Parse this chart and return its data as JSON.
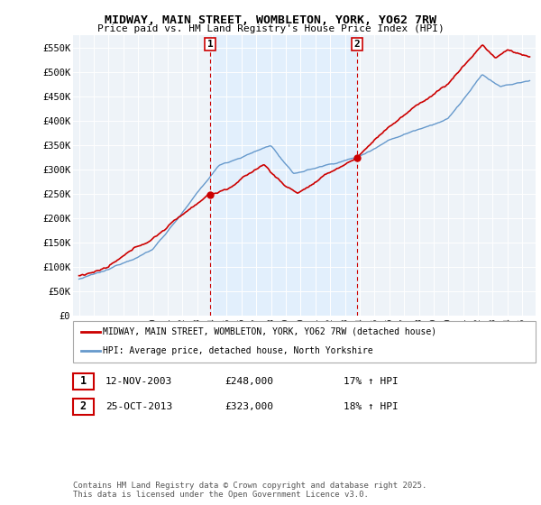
{
  "title": "MIDWAY, MAIN STREET, WOMBLETON, YORK, YO62 7RW",
  "subtitle": "Price paid vs. HM Land Registry's House Price Index (HPI)",
  "ylabel_ticks": [
    "£0",
    "£50K",
    "£100K",
    "£150K",
    "£200K",
    "£250K",
    "£300K",
    "£350K",
    "£400K",
    "£450K",
    "£500K",
    "£550K"
  ],
  "ytick_values": [
    0,
    50000,
    100000,
    150000,
    200000,
    250000,
    300000,
    350000,
    400000,
    450000,
    500000,
    550000
  ],
  "ylim": [
    0,
    575000
  ],
  "sale_color": "#cc0000",
  "hpi_color": "#6699cc",
  "shade_color": "#ddeeff",
  "marker1_year": 2003.87,
  "marker2_year": 2013.82,
  "marker1_price": 248000,
  "marker2_price": 323000,
  "legend_sale_label": "MIDWAY, MAIN STREET, WOMBLETON, YORK, YO62 7RW (detached house)",
  "legend_hpi_label": "HPI: Average price, detached house, North Yorkshire",
  "table_row1": [
    "1",
    "12-NOV-2003",
    "£248,000",
    "17% ↑ HPI"
  ],
  "table_row2": [
    "2",
    "25-OCT-2013",
    "£323,000",
    "18% ↑ HPI"
  ],
  "footer": "Contains HM Land Registry data © Crown copyright and database right 2025.\nThis data is licensed under the Open Government Licence v3.0.",
  "background_color": "#eef3f8"
}
